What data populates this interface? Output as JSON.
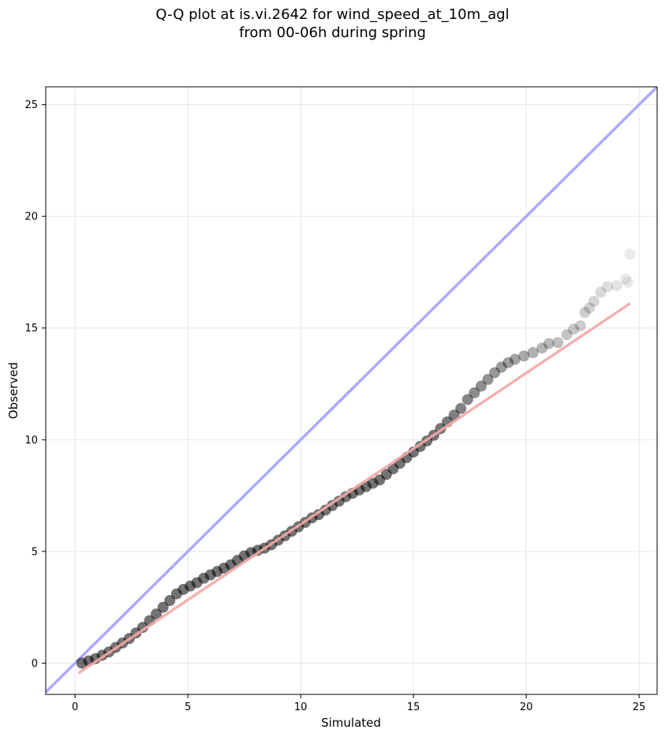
{
  "chart_data": {
    "type": "scatter",
    "title_line1": "Q-Q plot at is.vi.2642 for wind_speed_at_10m_agl",
    "title_line2": "from 00-06h during spring",
    "xlabel": "Simulated",
    "ylabel": "Observed",
    "xlim": [
      -1.3,
      25.8
    ],
    "ylim": [
      -1.4,
      25.8
    ],
    "xticks": [
      0,
      5,
      10,
      15,
      20,
      25
    ],
    "yticks": [
      0,
      5,
      10,
      15,
      20,
      25
    ],
    "grid": true,
    "reference_line": {
      "from": [
        -1.3,
        -1.3
      ],
      "to": [
        25.8,
        25.8
      ],
      "color": "#aaaaff"
    },
    "fit_line": {
      "from": [
        0.15,
        -0.45
      ],
      "to": [
        24.6,
        16.1
      ],
      "color": "#f4a7a7"
    },
    "points": {
      "color": "#000000",
      "x": [
        0.3,
        0.6,
        0.9,
        1.2,
        1.5,
        1.8,
        2.1,
        2.4,
        2.7,
        3.0,
        3.3,
        3.6,
        3.9,
        4.2,
        4.5,
        4.8,
        5.1,
        5.4,
        5.7,
        6.0,
        6.3,
        6.6,
        6.9,
        7.2,
        7.5,
        7.8,
        8.1,
        8.4,
        8.7,
        9.0,
        9.3,
        9.6,
        9.9,
        10.2,
        10.5,
        10.8,
        11.1,
        11.4,
        11.7,
        12.0,
        12.3,
        12.6,
        12.9,
        13.2,
        13.5,
        13.8,
        14.1,
        14.4,
        14.7,
        15.0,
        15.3,
        15.6,
        15.9,
        16.2,
        16.5,
        16.8,
        17.1,
        17.4,
        17.7,
        18.0,
        18.3,
        18.6,
        18.9,
        19.2,
        19.5,
        19.9,
        20.3,
        20.7,
        21.0,
        21.4,
        21.8,
        22.1,
        22.4,
        22.6,
        22.8,
        23.0,
        23.3,
        23.6,
        24.0,
        24.4,
        24.5,
        24.6
      ],
      "y": [
        0.0,
        0.1,
        0.2,
        0.35,
        0.5,
        0.7,
        0.9,
        1.1,
        1.35,
        1.6,
        1.9,
        2.2,
        2.5,
        2.8,
        3.1,
        3.3,
        3.45,
        3.6,
        3.8,
        3.95,
        4.1,
        4.25,
        4.4,
        4.6,
        4.8,
        4.95,
        5.05,
        5.15,
        5.3,
        5.5,
        5.7,
        5.9,
        6.1,
        6.3,
        6.5,
        6.65,
        6.85,
        7.05,
        7.25,
        7.45,
        7.6,
        7.75,
        7.9,
        8.05,
        8.2,
        8.45,
        8.7,
        8.95,
        9.2,
        9.45,
        9.7,
        9.95,
        10.2,
        10.5,
        10.8,
        11.1,
        11.4,
        11.8,
        12.1,
        12.4,
        12.7,
        13.0,
        13.25,
        13.45,
        13.6,
        13.75,
        13.9,
        14.1,
        14.3,
        14.35,
        14.7,
        14.95,
        15.1,
        15.7,
        15.9,
        16.2,
        16.6,
        16.85,
        16.9,
        17.2,
        17.05,
        18.3
      ]
    }
  }
}
